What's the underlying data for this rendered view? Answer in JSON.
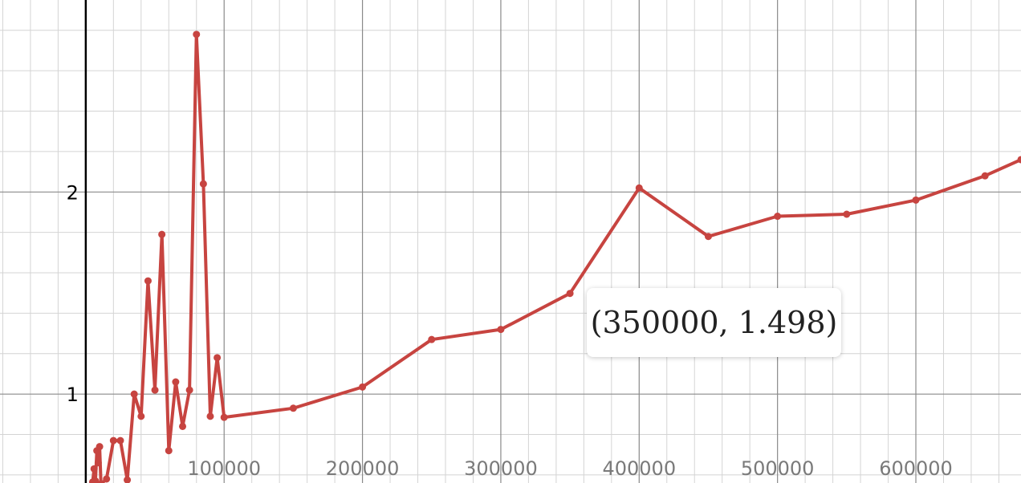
{
  "colors": {
    "series": "#c74440",
    "axis": "#000000",
    "major_grid": "#8a8a8a",
    "minor_grid": "#d4d4d4",
    "tick_label": "#000000",
    "x_tick_label": "#7a7a7a"
  },
  "tooltip": {
    "text": "(350000, 1.498)"
  },
  "chart_data": {
    "type": "line",
    "xlim": [
      -62000,
      676000
    ],
    "ylim": [
      0.56,
      2.95
    ],
    "grid": true,
    "x_ticks": [
      100000,
      200000,
      300000,
      400000,
      500000,
      600000
    ],
    "x_tick_labels": [
      "100000",
      "200000",
      "300000",
      "400000",
      "500000",
      "600000"
    ],
    "y_ticks": [
      1,
      2
    ],
    "y_tick_labels": [
      "1",
      "2"
    ],
    "series": [
      {
        "x": [
          5000,
          6000,
          7000,
          8000,
          9000,
          10000,
          11000,
          15000,
          20000,
          25000,
          30000,
          35000,
          40000,
          45000,
          50000,
          55000,
          60000,
          65000,
          70000,
          75000,
          80000,
          85000,
          90000,
          95000,
          100000,
          150000,
          200000,
          250000,
          300000,
          350000,
          400000,
          450000,
          500000,
          550000,
          600000,
          650000,
          676000
        ],
        "y": [
          0.565,
          0.63,
          0.57,
          0.72,
          0.66,
          0.74,
          0.555,
          0.58,
          0.77,
          0.77,
          0.575,
          1.0,
          0.89,
          1.56,
          1.02,
          1.79,
          0.72,
          1.06,
          0.84,
          1.02,
          2.78,
          2.04,
          0.89,
          1.18,
          0.885,
          0.93,
          1.035,
          1.27,
          1.32,
          1.498,
          2.02,
          1.78,
          1.88,
          1.89,
          1.96,
          2.08,
          2.16
        ]
      }
    ],
    "highlight": {
      "x": 350000,
      "y": 1.498
    }
  }
}
